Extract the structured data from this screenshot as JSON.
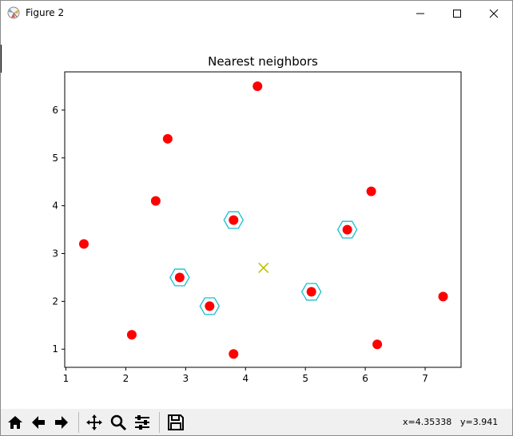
{
  "window": {
    "title": "Figure 2",
    "controls": {
      "minimize": "minimize",
      "maximize": "maximize",
      "close": "close"
    }
  },
  "toolbar": {
    "buttons": [
      "home-icon",
      "back-arrow-icon",
      "forward-arrow-icon",
      "pan-icon",
      "zoom-icon",
      "subplots-icon",
      "save-icon"
    ],
    "x_readout": "x=4.35338",
    "y_readout": "y=3.941"
  },
  "chart_data": {
    "type": "scatter",
    "title": "Nearest neighbors",
    "xlabel": "",
    "ylabel": "",
    "xlim": [
      0.98,
      7.6
    ],
    "ylim": [
      0.62,
      6.8
    ],
    "xticks": [
      1,
      2,
      3,
      4,
      5,
      6,
      7
    ],
    "yticks": [
      1,
      2,
      3,
      4,
      5,
      6
    ],
    "grid": false,
    "series": [
      {
        "marker": "filled-circle",
        "color": "#ff0000",
        "points": [
          [
            1.3,
            3.2
          ],
          [
            2.1,
            1.3
          ],
          [
            2.5,
            4.1
          ],
          [
            2.7,
            5.4
          ],
          [
            2.9,
            2.5
          ],
          [
            3.4,
            1.9
          ],
          [
            3.8,
            3.7
          ],
          [
            3.8,
            0.9
          ],
          [
            4.2,
            6.5
          ],
          [
            5.1,
            2.2
          ],
          [
            5.7,
            3.5
          ],
          [
            6.1,
            4.3
          ],
          [
            6.2,
            1.1
          ],
          [
            7.3,
            2.1
          ]
        ]
      },
      {
        "marker": "hexagon-outline",
        "color": "#17becf",
        "points": [
          [
            2.9,
            2.5
          ],
          [
            3.4,
            1.9
          ],
          [
            3.8,
            3.7
          ],
          [
            5.1,
            2.2
          ],
          [
            5.7,
            3.5
          ]
        ]
      },
      {
        "marker": "x",
        "color": "#bfbf00",
        "points": [
          [
            4.3,
            2.7
          ]
        ]
      }
    ]
  }
}
